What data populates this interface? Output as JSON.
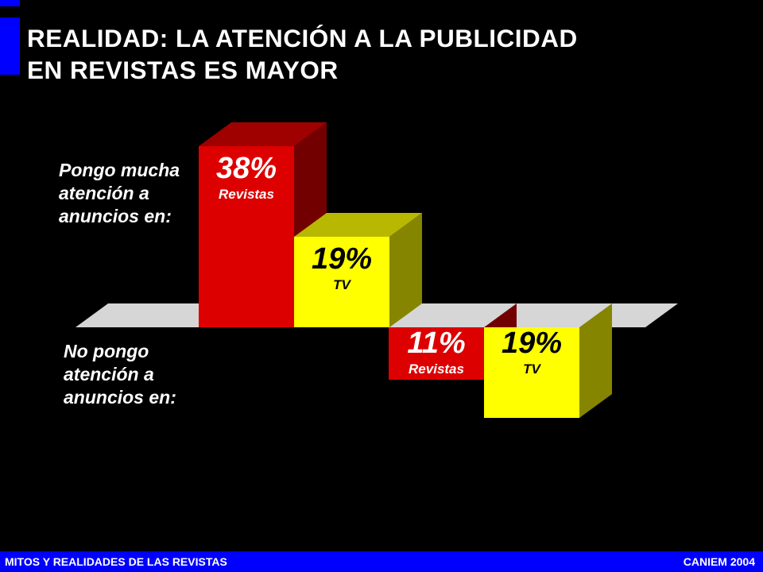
{
  "slide": {
    "title_lines": [
      "REALIDAD: LA ATENCIÓN A LA PUBLICIDAD",
      "EN REVISTAS ES MAYOR"
    ],
    "footer_left": "MITOS Y REALIDADES DE LAS REVISTAS",
    "footer_right": "CANIEM 2004",
    "accent_color": "#0000ff"
  },
  "chart_data": {
    "type": "bar",
    "categories": [
      "Pongo mucha atención a anuncios en:",
      "No pongo atención a anuncios en:"
    ],
    "series": [
      {
        "name": "Revistas",
        "values": [
          38,
          -11
        ],
        "labels": [
          "38%",
          "11%"
        ],
        "color": "#dd0000"
      },
      {
        "name": "TV",
        "values": [
          19,
          -19
        ],
        "labels": [
          "19%",
          "19%"
        ],
        "color": "#ffff00"
      }
    ],
    "ylim": [
      -20,
      40
    ],
    "grid": false,
    "style": "3d"
  }
}
